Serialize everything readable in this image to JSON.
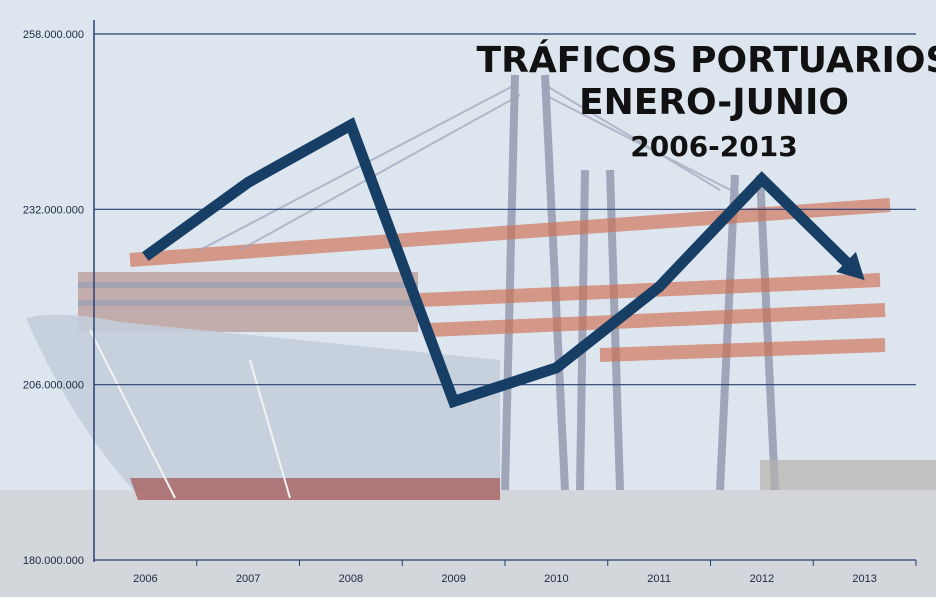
{
  "chart_data": {
    "type": "line",
    "title": "TRÁFICOS PORTUARIOS",
    "subtitle": "ENERO-JUNIO",
    "period": "2006-2013",
    "xlabel": "",
    "ylabel": "",
    "categories": [
      "2006",
      "2007",
      "2008",
      "2009",
      "2010",
      "2011",
      "2012",
      "2013"
    ],
    "values": [
      225000000,
      236000000,
      244500000,
      203500000,
      208500000,
      220500000,
      236500000,
      221500000
    ],
    "yticks": [
      "258.000.000",
      "232.000.000",
      "206.000.000",
      "180.000.000"
    ],
    "ylim": [
      180000000,
      258000000
    ],
    "grid": "horizontal",
    "legend": "none",
    "arrow_end": true,
    "colors": {
      "line": "#173f66",
      "grid": "#2a3f73",
      "axis": "#2a3f73"
    },
    "background": "container ship and gantry cranes at a port"
  }
}
